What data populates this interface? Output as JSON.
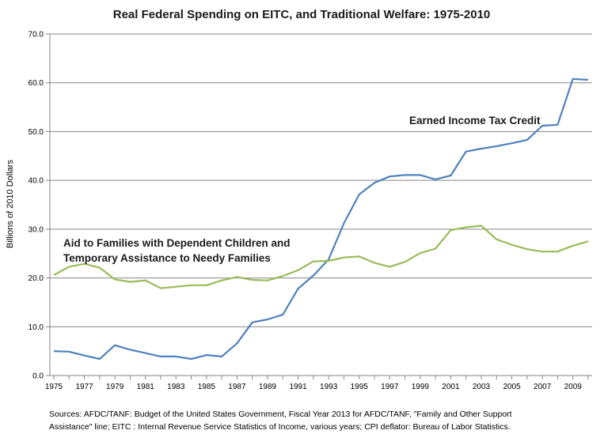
{
  "chart_data": {
    "type": "line",
    "title": "Real Federal Spending on EITC, and Traditional Welfare: 1975-2010",
    "ylabel": "Billions of 2010 Dollars",
    "xlabel": "",
    "ylim": [
      0,
      70
    ],
    "yticks": [
      "0.0",
      "10.0",
      "20.0",
      "30.0",
      "40.0",
      "50.0",
      "60.0",
      "70.0"
    ],
    "xlim": [
      1975,
      2010
    ],
    "xticks": [
      "1975",
      "1977",
      "1979",
      "1981",
      "1983",
      "1985",
      "1987",
      "1989",
      "1991",
      "1993",
      "1995",
      "1997",
      "1999",
      "2001",
      "2003",
      "2005",
      "2007",
      "2009"
    ],
    "grid": "horizontal",
    "x": [
      1975,
      1976,
      1977,
      1978,
      1979,
      1980,
      1981,
      1982,
      1983,
      1984,
      1985,
      1986,
      1987,
      1988,
      1989,
      1990,
      1991,
      1992,
      1993,
      1994,
      1995,
      1996,
      1997,
      1998,
      1999,
      2000,
      2001,
      2002,
      2003,
      2004,
      2005,
      2006,
      2007,
      2008,
      2009,
      2010
    ],
    "series": [
      {
        "key": "eitc",
        "color": "#4f81bd",
        "values": [
          5.0,
          4.9,
          4.1,
          3.4,
          6.2,
          5.3,
          4.6,
          3.9,
          3.9,
          3.4,
          4.2,
          3.9,
          6.6,
          10.9,
          11.5,
          12.5,
          17.8,
          20.5,
          23.8,
          31.2,
          37.1,
          39.5,
          40.8,
          41.1,
          41.1,
          40.2,
          41.0,
          45.9,
          46.5,
          47.0,
          47.6,
          48.3,
          51.2,
          51.4,
          60.8,
          60.6
        ]
      },
      {
        "key": "afdc_tanf",
        "color": "#9bbb59",
        "values": [
          20.6,
          22.3,
          22.9,
          22.1,
          19.7,
          19.2,
          19.5,
          17.9,
          18.2,
          18.5,
          18.5,
          19.5,
          20.2,
          19.6,
          19.5,
          20.4,
          21.6,
          23.4,
          23.5,
          24.2,
          24.4,
          23.1,
          22.3,
          23.3,
          25.1,
          26.0,
          29.8,
          30.4,
          30.7,
          27.9,
          26.8,
          25.9,
          25.4,
          25.4,
          26.6,
          27.5
        ]
      }
    ],
    "annotations": {
      "eitc_label": "Earned Income Tax Credit",
      "afdc_label_line1": "Aid to Families with Dependent Children and",
      "afdc_label_line2": "Temporary Assistance to Needy Families"
    },
    "source_line1": "Sources: AFDC/TANF: Budget of the United States Government,  Fiscal Year 2013 for AFDC/TANF, \"Family and Other Support",
    "source_line2": "Assistance\" line; EITC : Internal Revenue Service Statistics of Income, various years; CPI deflator: Bureau of Labor Statistics."
  }
}
